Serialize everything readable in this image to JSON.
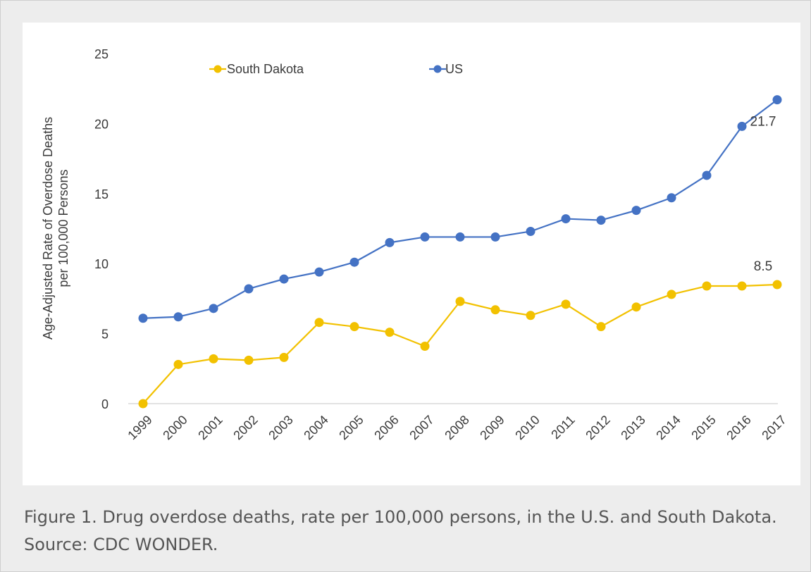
{
  "caption": "Figure 1. Drug overdose deaths, rate per 100,000 persons, in the U.S. and South Dakota. Source: CDC WONDER.",
  "chart_data": {
    "type": "line",
    "title": "",
    "xlabel": "",
    "ylabel_lines": [
      "Age-Adjusted Rate of Overdose Deaths",
      "per 100,000 Persons"
    ],
    "ylim": [
      0,
      25
    ],
    "yticks": [
      0,
      5,
      10,
      15,
      20,
      25
    ],
    "grid": false,
    "legend_position": "top-left",
    "categories": [
      "1999",
      "2000",
      "2001",
      "2002",
      "2003",
      "2004",
      "2005",
      "2006",
      "2007",
      "2008",
      "2009",
      "2010",
      "2011",
      "2012",
      "2013",
      "2014",
      "2015",
      "2016",
      "2017"
    ],
    "series": [
      {
        "name": "South Dakota",
        "color": "#f2c100",
        "values": [
          0,
          2.8,
          3.2,
          3.1,
          3.3,
          5.8,
          5.5,
          5.1,
          4.1,
          7.3,
          6.7,
          6.3,
          7.1,
          5.5,
          6.9,
          7.8,
          8.4,
          8.4,
          8.5
        ],
        "end_label": "8.5"
      },
      {
        "name": "US",
        "color": "#4472c4",
        "values": [
          6.1,
          6.2,
          6.8,
          8.2,
          8.9,
          9.4,
          10.1,
          11.5,
          11.9,
          11.9,
          11.9,
          12.3,
          13.2,
          13.1,
          13.8,
          14.7,
          16.3,
          19.8,
          21.7
        ],
        "end_label": "21.7"
      }
    ]
  }
}
